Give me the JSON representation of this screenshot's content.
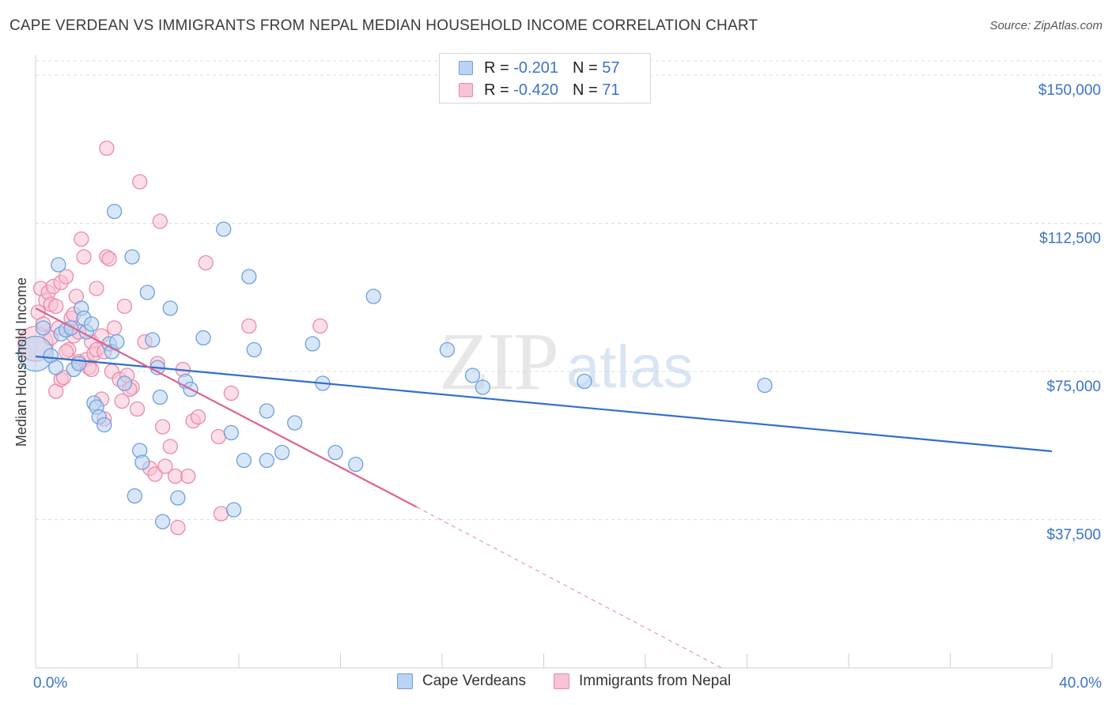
{
  "header": {
    "title": "CAPE VERDEAN VS IMMIGRANTS FROM NEPAL MEDIAN HOUSEHOLD INCOME CORRELATION CHART",
    "source": "Source: ZipAtlas.com"
  },
  "legend": {
    "rows": [
      {
        "r_label": "R = ",
        "r_value": "-0.201",
        "n_label": "N = ",
        "n_value": "57"
      },
      {
        "r_label": "R = ",
        "r_value": "-0.420",
        "n_label": "N = ",
        "n_value": "71"
      }
    ]
  },
  "bottom_legend": {
    "items": [
      {
        "label": "Cape Verdeans"
      },
      {
        "label": "Immigrants from Nepal"
      }
    ]
  },
  "watermark": {
    "zip": "ZIP",
    "atlas": "atlas"
  },
  "colors": {
    "blue_fill": "#b8d3f3",
    "blue_stroke": "#6f9fdc",
    "blue_line": "#2f6fd0",
    "pink_fill": "#f8c3d4",
    "pink_stroke": "#ec8aa9",
    "pink_line": "#e0628e",
    "tick_text": "#3b73c8",
    "grid": "#dcdcdc"
  },
  "chart_data": {
    "type": "scatter",
    "title": "CAPE VERDEAN VS IMMIGRANTS FROM NEPAL MEDIAN HOUSEHOLD INCOME CORRELATION CHART",
    "xlabel": "",
    "ylabel": "Median Household Income",
    "xlim": [
      0,
      40
    ],
    "ylim": [
      0,
      155000
    ],
    "x_tick_labels": [
      "0.0%",
      "40.0%"
    ],
    "y_ticks": [
      37500,
      75000,
      112500,
      150000
    ],
    "y_tick_labels": [
      "$37,500",
      "$75,000",
      "$112,500",
      "$150,000"
    ],
    "grid": true,
    "series": [
      {
        "name": "Cape Verdeans",
        "r": -0.201,
        "n": 57,
        "trend": {
          "x0": 0,
          "y0": 78800,
          "x1": 40,
          "y1": 54800,
          "dashed_from": null
        },
        "points": [
          [
            0.0,
            79500,
            "large"
          ],
          [
            0.3,
            86000
          ],
          [
            0.6,
            79000
          ],
          [
            0.8,
            76000
          ],
          [
            0.9,
            102000
          ],
          [
            1.0,
            84500
          ],
          [
            1.2,
            85500
          ],
          [
            1.4,
            86000
          ],
          [
            1.5,
            75500
          ],
          [
            1.7,
            77000
          ],
          [
            1.8,
            91000
          ],
          [
            1.9,
            88500
          ],
          [
            2.0,
            85000
          ],
          [
            2.2,
            87000
          ],
          [
            2.3,
            67000
          ],
          [
            2.4,
            66000
          ],
          [
            2.5,
            63500
          ],
          [
            2.7,
            61500
          ],
          [
            2.9,
            82000
          ],
          [
            3.0,
            80000
          ],
          [
            3.1,
            115500
          ],
          [
            3.2,
            82500
          ],
          [
            3.5,
            72000
          ],
          [
            3.8,
            104000
          ],
          [
            3.9,
            43500
          ],
          [
            4.1,
            55000
          ],
          [
            4.2,
            52000
          ],
          [
            4.4,
            95000
          ],
          [
            4.6,
            83000
          ],
          [
            4.8,
            76000
          ],
          [
            4.9,
            68500
          ],
          [
            5.0,
            37000
          ],
          [
            5.3,
            91000
          ],
          [
            5.6,
            43000
          ],
          [
            5.9,
            72500
          ],
          [
            6.1,
            70500
          ],
          [
            6.6,
            83500
          ],
          [
            7.4,
            111000
          ],
          [
            7.7,
            59500
          ],
          [
            7.8,
            40000
          ],
          [
            8.2,
            52500
          ],
          [
            8.4,
            99000
          ],
          [
            8.6,
            80500
          ],
          [
            9.1,
            52500
          ],
          [
            9.1,
            65000
          ],
          [
            9.7,
            54500
          ],
          [
            10.2,
            62000
          ],
          [
            10.9,
            82000
          ],
          [
            11.3,
            72000
          ],
          [
            11.8,
            54500
          ],
          [
            12.6,
            51500
          ],
          [
            13.3,
            94000
          ],
          [
            16.2,
            80500
          ],
          [
            17.2,
            74000
          ],
          [
            17.6,
            71000
          ],
          [
            21.6,
            72500
          ],
          [
            28.7,
            71500
          ]
        ]
      },
      {
        "name": "Immigrants from Nepal",
        "r": -0.42,
        "n": 71,
        "trend": {
          "x0": 0,
          "y0": 91000,
          "x1": 15,
          "y1": 40700,
          "dashed_from": 15,
          "dashed_to_x": 27,
          "dashed_to_y": 0
        },
        "points": [
          [
            0.0,
            82000,
            "large"
          ],
          [
            0.1,
            90000
          ],
          [
            0.2,
            96000
          ],
          [
            0.3,
            87000
          ],
          [
            0.4,
            93000
          ],
          [
            0.5,
            95000
          ],
          [
            0.6,
            92000
          ],
          [
            0.7,
            96500
          ],
          [
            0.8,
            91500
          ],
          [
            0.8,
            70000
          ],
          [
            0.9,
            86000
          ],
          [
            1.0,
            97500
          ],
          [
            1.0,
            73000
          ],
          [
            1.1,
            73500
          ],
          [
            1.2,
            99000
          ],
          [
            1.3,
            80500
          ],
          [
            1.4,
            86000
          ],
          [
            1.4,
            88500
          ],
          [
            1.5,
            84000
          ],
          [
            1.6,
            94000
          ],
          [
            1.7,
            85000
          ],
          [
            1.7,
            77500
          ],
          [
            1.8,
            108500
          ],
          [
            1.9,
            104000
          ],
          [
            2.0,
            78000
          ],
          [
            2.1,
            76000
          ],
          [
            2.2,
            82500
          ],
          [
            2.3,
            79500
          ],
          [
            2.4,
            96000
          ],
          [
            2.4,
            80500
          ],
          [
            2.6,
            84000
          ],
          [
            2.6,
            68000
          ],
          [
            2.7,
            80000
          ],
          [
            2.7,
            63000
          ],
          [
            2.8,
            104000
          ],
          [
            2.9,
            103500
          ],
          [
            3.0,
            75000
          ],
          [
            3.1,
            86000
          ],
          [
            3.3,
            73000
          ],
          [
            3.4,
            67500
          ],
          [
            3.5,
            91500
          ],
          [
            3.6,
            74000
          ],
          [
            3.8,
            71000
          ],
          [
            4.0,
            65500
          ],
          [
            4.1,
            123000
          ],
          [
            4.3,
            82500
          ],
          [
            4.5,
            50500
          ],
          [
            4.7,
            49000
          ],
          [
            4.8,
            77000
          ],
          [
            4.9,
            113000
          ],
          [
            5.1,
            51000
          ],
          [
            5.3,
            56000
          ],
          [
            5.5,
            48500
          ],
          [
            5.6,
            35500
          ],
          [
            5.8,
            75500
          ],
          [
            6.2,
            62500
          ],
          [
            6.4,
            63500
          ],
          [
            6.7,
            102500
          ],
          [
            7.2,
            58500
          ],
          [
            7.3,
            39000
          ],
          [
            7.7,
            69500
          ],
          [
            8.4,
            86500
          ],
          [
            11.2,
            86500
          ],
          [
            2.8,
            131500
          ],
          [
            1.5,
            89500
          ],
          [
            0.6,
            83500
          ],
          [
            2.2,
            75500
          ],
          [
            3.7,
            70500
          ],
          [
            5.0,
            61000
          ],
          [
            6.0,
            48500
          ],
          [
            1.2,
            80000
          ]
        ]
      }
    ]
  }
}
